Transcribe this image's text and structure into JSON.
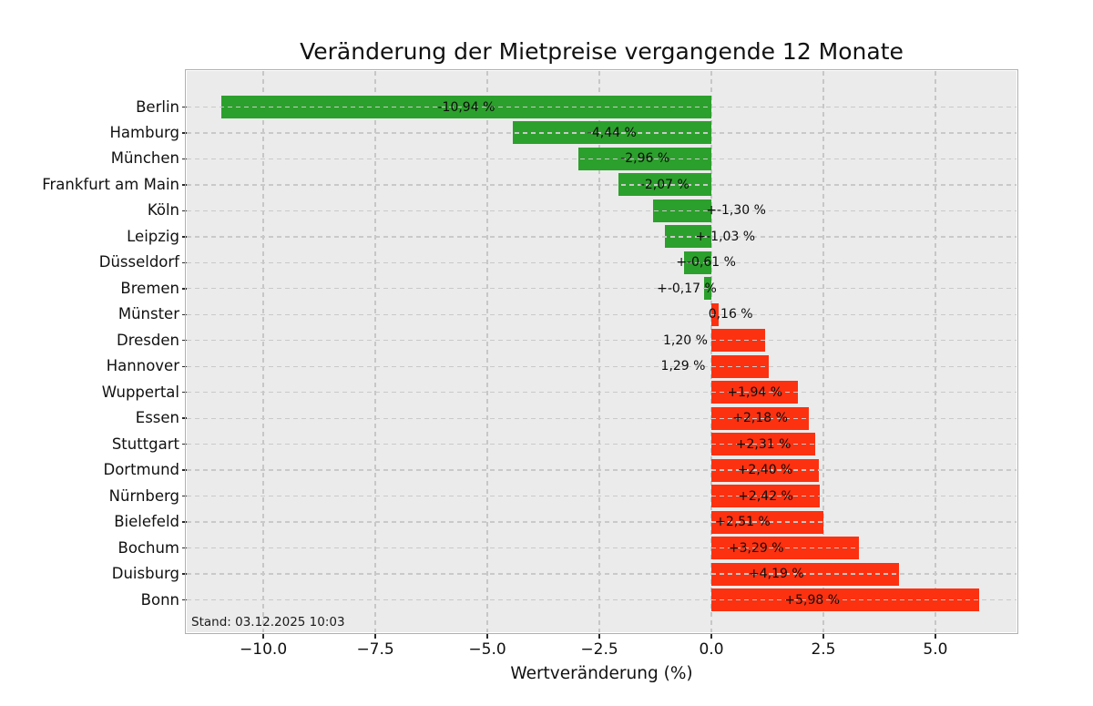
{
  "chart_data": {
    "type": "bar",
    "orientation": "horizontal",
    "title": "Veränderung der Mietpreise vergangende 12 Monate",
    "xlabel": "Wertveränderung (%)",
    "ylabel": "",
    "xlim": [
      -11.71,
      6.81
    ],
    "grid": "dashed",
    "legend": "none",
    "annotation": "Stand: 03.12.2025 10:03",
    "x_ticks": [
      {
        "value": -10.0,
        "label": "−10.0"
      },
      {
        "value": -7.5,
        "label": "−7.5"
      },
      {
        "value": -5.0,
        "label": "−5.0"
      },
      {
        "value": -2.5,
        "label": "−2.5"
      },
      {
        "value": 0.0,
        "label": "0.0"
      },
      {
        "value": 2.5,
        "label": "2.5"
      },
      {
        "value": 5.0,
        "label": "5.0"
      }
    ],
    "colors": {
      "negative_bar": "#2ca02c",
      "positive_bar": "#fc3110",
      "plot_background": "#ebebeb",
      "grid": "#c8c8c8",
      "frame": "#b0b0b0",
      "text": "#111111"
    },
    "rows": [
      {
        "city": "Berlin",
        "value": -10.94,
        "label": "-10,94 %",
        "label_x": -5.47
      },
      {
        "city": "Hamburg",
        "value": -4.44,
        "label": "-4,44 %",
        "label_x": -2.22
      },
      {
        "city": "München",
        "value": -2.96,
        "label": "-2,96 %",
        "label_x": -1.48
      },
      {
        "city": "Frankfurt am Main",
        "value": -2.07,
        "label": "-2,07 %",
        "label_x": -1.04
      },
      {
        "city": "Köln",
        "value": -1.3,
        "label": "+-1,30 %",
        "label_x": 0.55
      },
      {
        "city": "Leipzig",
        "value": -1.03,
        "label": "+-1,03 %",
        "label_x": 0.31
      },
      {
        "city": "Düsseldorf",
        "value": -0.61,
        "label": "+-0,61 %",
        "label_x": -0.12
      },
      {
        "city": "Bremen",
        "value": -0.17,
        "label": "+-0,17 %",
        "label_x": -0.55
      },
      {
        "city": "Münster",
        "value": 0.16,
        "label": "0,16 %",
        "label_x": 0.43
      },
      {
        "city": "Dresden",
        "value": 1.2,
        "label": "1,20 %",
        "label_x": -0.58
      },
      {
        "city": "Hannover",
        "value": 1.29,
        "label": "1,29 %",
        "label_x": -0.63
      },
      {
        "city": "Wuppertal",
        "value": 1.94,
        "label": "+1,94 %",
        "label_x": 0.97
      },
      {
        "city": "Essen",
        "value": 2.18,
        "label": "+2,18 %",
        "label_x": 1.09
      },
      {
        "city": "Stuttgart",
        "value": 2.31,
        "label": "+2,31 %",
        "label_x": 1.16
      },
      {
        "city": "Dortmund",
        "value": 2.4,
        "label": "+2,40 %",
        "label_x": 1.2
      },
      {
        "city": "Nürnberg",
        "value": 2.42,
        "label": "+2,42 %",
        "label_x": 1.21
      },
      {
        "city": "Bielefeld",
        "value": 2.51,
        "label": "+2,51 %",
        "label_x": 0.7
      },
      {
        "city": "Bochum",
        "value": 3.29,
        "label": "+3,29 %",
        "label_x": 1.0
      },
      {
        "city": "Duisburg",
        "value": 4.19,
        "label": "+4,19 %",
        "label_x": 1.45
      },
      {
        "city": "Bonn",
        "value": 5.98,
        "label": "+5,98 %",
        "label_x": 2.25
      }
    ]
  }
}
